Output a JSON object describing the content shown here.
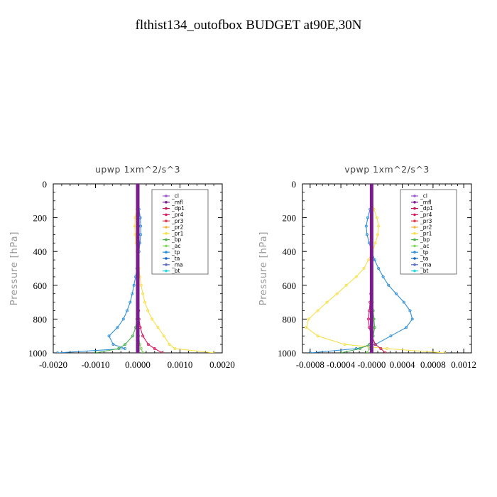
{
  "figure_title": "flthist134_outofbox  BUDGET at90E,30N",
  "colors": {
    "_cl": "#9b59d0",
    "_mfl": "#7a1d8f",
    "_dp1": "#c2185b",
    "_pr4": "#d81b60",
    "_pr3": "#e53950",
    "_pr2": "#f2b640",
    "_pr1": "#f6e04a",
    "_bp": "#4caf50",
    "_ac": "#7ed957",
    "_tp": "#2f8fd6",
    "_ta": "#1565c0",
    "_ma": "#5c6bc0",
    "_bt": "#26d7e0"
  },
  "chart_data": [
    {
      "type": "line",
      "title": "upwp   1xm^2/s^3",
      "ylabel": "Pressure [hPa]",
      "xlabel": "",
      "xlim": [
        -0.002,
        0.002
      ],
      "ylim": [
        1000,
        0
      ],
      "xticks": [
        "-0.0020",
        "-0.0010",
        "0.0000",
        "0.0010",
        "0.0020"
      ],
      "yticks": [
        "0",
        "200",
        "400",
        "600",
        "800",
        "1000"
      ],
      "legend_position": "top-right",
      "legend": [
        "_cl",
        "_mfl",
        "_dp1",
        "_pr4",
        "_pr3",
        "_pr2",
        "_pr1",
        "_bp",
        "_ac",
        "_tp",
        "_ta",
        "_ma",
        "_bt"
      ],
      "y": [
        0,
        100,
        150,
        200,
        250,
        300,
        350,
        400,
        450,
        500,
        550,
        600,
        650,
        700,
        750,
        800,
        850,
        900,
        950,
        975,
        1000
      ],
      "series": [
        {
          "name": "_tp",
          "values": [
            0,
            0,
            3e-05,
            6e-05,
            7e-05,
            7e-05,
            5e-05,
            3e-05,
            0,
            -2e-05,
            -5e-05,
            -9e-05,
            -0.00013,
            -0.00018,
            -0.00025,
            -0.00034,
            -0.00048,
            -0.00068,
            -0.00058,
            -0.0003,
            -0.0019
          ]
        },
        {
          "name": "_pr1",
          "values": [
            0,
            0,
            -2e-05,
            -6e-05,
            -7e-05,
            -6e-05,
            -4e-05,
            -2e-05,
            0,
            3e-05,
            5e-05,
            8e-05,
            0.00012,
            0.00017,
            0.00024,
            0.00034,
            0.00048,
            0.00062,
            0.00075,
            0.00088,
            0.0018
          ]
        },
        {
          "name": "_bp",
          "values": [
            0,
            0,
            0,
            0,
            0,
            0,
            0,
            0,
            0,
            0,
            0,
            0,
            0,
            0,
            -1e-05,
            -2e-05,
            -5e-05,
            -0.00012,
            -0.0003,
            -0.00045,
            -0.001
          ]
        },
        {
          "name": "_pr4",
          "values": [
            0,
            0,
            0,
            0,
            0,
            0,
            0,
            0,
            0,
            0,
            0,
            0,
            0,
            1e-05,
            2e-05,
            3e-05,
            6e-05,
            0.00012,
            0.00025,
            0.0004,
            0.00058
          ]
        },
        {
          "name": "_ac",
          "values": [
            0,
            0,
            0,
            0,
            0,
            0,
            0,
            0,
            0,
            0,
            0,
            0,
            0,
            0,
            0,
            0,
            0,
            2e-05,
            5e-05,
            8e-05,
            0.00012
          ]
        },
        {
          "name": "_mfl",
          "values": [
            0,
            0,
            0,
            0,
            0,
            0,
            0,
            0,
            0,
            0,
            0,
            0,
            0,
            0,
            0,
            0,
            0,
            0,
            0,
            0,
            0
          ]
        }
      ]
    },
    {
      "type": "line",
      "title": "vpwp   1xm^2/s^3",
      "ylabel": "Pressure [hPa]",
      "xlabel": "",
      "xlim": [
        -0.0009,
        0.0013
      ],
      "ylim": [
        1000,
        0
      ],
      "xticks": [
        "-0.0008",
        "-0.0004",
        "-0.0000",
        "0.0004",
        "0.0008",
        "0.0012"
      ],
      "yticks": [
        "0",
        "200",
        "400",
        "600",
        "800",
        "1000"
      ],
      "legend_position": "top-right",
      "legend": [
        "_cl",
        "_mfl",
        "_dp1",
        "_pr4",
        "_pr3",
        "_pr2",
        "_pr1",
        "_bp",
        "_ac",
        "_tp",
        "_ta",
        "_ma",
        "_bt"
      ],
      "y": [
        0,
        100,
        150,
        200,
        250,
        300,
        350,
        400,
        450,
        500,
        550,
        600,
        650,
        700,
        750,
        800,
        850,
        900,
        950,
        975,
        1000
      ],
      "series": [
        {
          "name": "_tp",
          "values": [
            0,
            0,
            -2e-05,
            -5e-05,
            -7e-05,
            -6e-05,
            -3e-05,
            0,
            4e-05,
            9e-05,
            0.00015,
            0.00022,
            0.00032,
            0.00042,
            0.0005,
            0.00053,
            0.00045,
            0.00025,
            5e-05,
            -0.0002,
            -0.0008
          ]
        },
        {
          "name": "_pr1",
          "values": [
            0,
            0,
            3e-05,
            7e-05,
            9e-05,
            8e-05,
            5e-05,
            1e-05,
            -4e-05,
            -0.0001,
            -0.0002,
            -0.00033,
            -0.00045,
            -0.00058,
            -0.0007,
            -0.00082,
            -0.00085,
            -0.0007,
            -0.00035,
            0.0002,
            0.00095
          ]
        },
        {
          "name": "_bp",
          "values": [
            0,
            0,
            0,
            0,
            0,
            0,
            0,
            0,
            0,
            0,
            0,
            0,
            0,
            1e-05,
            2e-05,
            3e-05,
            4e-05,
            2e-05,
            -3e-05,
            -0.00015,
            -0.0004
          ]
        },
        {
          "name": "_pr4",
          "values": [
            0,
            0,
            0,
            0,
            0,
            0,
            0,
            0,
            0,
            0,
            0,
            0,
            -1e-05,
            -2e-05,
            -3e-05,
            -4e-05,
            -3e-05,
            0,
            5e-05,
            0.00012,
            0.00018
          ]
        },
        {
          "name": "_ac",
          "values": [
            0,
            0,
            0,
            0,
            0,
            0,
            0,
            0,
            0,
            0,
            0,
            0,
            0,
            0,
            1e-05,
            2e-05,
            2e-05,
            1e-05,
            0,
            -3e-05,
            -6e-05
          ]
        },
        {
          "name": "_mfl",
          "values": [
            0,
            0,
            0,
            0,
            0,
            0,
            0,
            0,
            0,
            0,
            0,
            0,
            0,
            0,
            0,
            0,
            0,
            0,
            0,
            0,
            0
          ]
        }
      ]
    }
  ]
}
